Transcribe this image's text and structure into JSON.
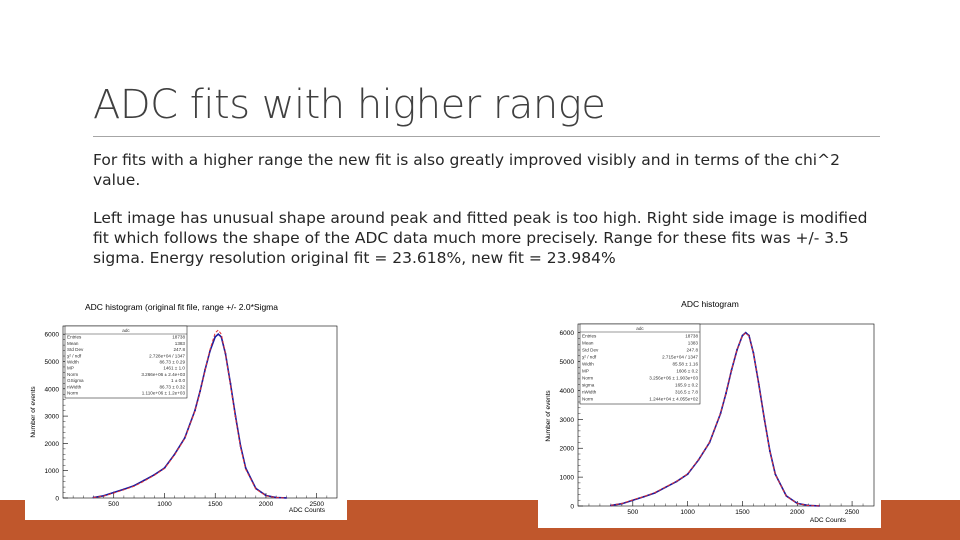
{
  "slide": {
    "title": "ADC fits with higher range",
    "paragraph1": "For fits with a higher range the new fit is also greatly improved visibly and in terms of the chi^2 value.",
    "paragraph2": "Left image has unusual shape around peak and fitted peak is too high. Right side image is modified fit which follows the shape of the ADC data much more precisely. Range for these fits was +/- 3.5 sigma. Energy resolution original fit = 23.618%, new fit = 23.984%",
    "accent_color": "#c0572c"
  },
  "chart_data": [
    {
      "type": "line",
      "title": "ADC histogram (original fit file, range +/- 2.0*Sigma",
      "xlabel": "ADC Counts",
      "ylabel": "Number of events",
      "xlim": [
        0,
        2700
      ],
      "ylim": [
        0,
        6300
      ],
      "x_ticks": [
        "500",
        "1000",
        "1500",
        "2000",
        "2500"
      ],
      "y_ticks": [
        "0",
        "1000",
        "2000",
        "3000",
        "4000",
        "5000",
        "6000"
      ],
      "stats_box_title": "adc",
      "stats_labels": [
        "Entries",
        "Mean",
        "Std Dev",
        "χ² / ndf",
        "Width",
        "MP",
        "Norm",
        "GSigma",
        "nWidth",
        "Norm"
      ],
      "stats_values": [
        "18738",
        "1383",
        "247.8",
        "2.728e+04 / 1347",
        "86.73 ± 0.29",
        "1461 ± 1.0",
        "3.266e+06 ± 2.4e+03",
        "1 ± 0.0",
        "86.73 ± 0.32",
        "1.110e+06 ± 1.2e+03"
      ],
      "series": [
        {
          "x": [
            300,
            400,
            500,
            600,
            700,
            800,
            900,
            1000,
            1100,
            1200,
            1300,
            1350,
            1400,
            1450,
            1500,
            1530,
            1560,
            1600,
            1650,
            1700,
            1750,
            1800,
            1900,
            2000,
            2100,
            2200
          ],
          "y": [
            20,
            80,
            200,
            320,
            450,
            650,
            850,
            1100,
            1600,
            2200,
            3200,
            3900,
            4700,
            5400,
            5900,
            6000,
            5900,
            5300,
            4200,
            3000,
            1900,
            1100,
            350,
            90,
            20,
            5
          ]
        },
        {
          "x": [
            300,
            400,
            500,
            600,
            700,
            800,
            900,
            1000,
            1100,
            1200,
            1300,
            1350,
            1400,
            1450,
            1500,
            1530,
            1560,
            1600,
            1650,
            1700,
            1750,
            1800,
            1900,
            2000,
            2100,
            2200
          ],
          "y": [
            20,
            70,
            180,
            300,
            430,
            620,
            830,
            1080,
            1580,
            2180,
            3180,
            3880,
            4680,
            5450,
            6050,
            6150,
            6000,
            5300,
            4150,
            2950,
            1850,
            1050,
            330,
            80,
            15,
            3
          ]
        }
      ],
      "series_colors": [
        "#1a1aa0",
        "#e03030"
      ]
    },
    {
      "type": "line",
      "title": "ADC histogram",
      "xlabel": "ADC Counts",
      "ylabel": "Number of events",
      "xlim": [
        0,
        2700
      ],
      "ylim": [
        0,
        6300
      ],
      "x_ticks": [
        "500",
        "1000",
        "1500",
        "2000",
        "2500"
      ],
      "y_ticks": [
        "0",
        "1000",
        "2000",
        "3000",
        "4000",
        "5000",
        "6000"
      ],
      "stats_box_title": "adc",
      "stats_labels": [
        "Entries",
        "Mean",
        "Std Dev",
        "χ² / ndf",
        "Width",
        "MP",
        "Norm",
        "sigma",
        "nWidth",
        "Norm"
      ],
      "stats_values": [
        "18738",
        "1383",
        "247.8",
        "2.715e+04 / 1347",
        "85.58 ± 1.16",
        "1606 ± 0.2",
        "3.256e+06 ± 1.903e+03",
        "165.9 ± 0.2",
        "316.5 ± 7.8",
        "1.244e+04 ± 4.055e+02"
      ],
      "series": [
        {
          "x": [
            300,
            400,
            500,
            600,
            700,
            800,
            900,
            1000,
            1100,
            1200,
            1300,
            1350,
            1400,
            1450,
            1500,
            1530,
            1560,
            1600,
            1650,
            1700,
            1750,
            1800,
            1900,
            2000,
            2100,
            2200
          ],
          "y": [
            20,
            80,
            200,
            320,
            450,
            650,
            850,
            1100,
            1600,
            2200,
            3200,
            3900,
            4700,
            5400,
            5900,
            6000,
            5900,
            5300,
            4200,
            3000,
            1900,
            1100,
            350,
            90,
            20,
            5
          ]
        },
        {
          "x": [
            300,
            400,
            500,
            600,
            700,
            800,
            900,
            1000,
            1100,
            1200,
            1300,
            1350,
            1400,
            1450,
            1500,
            1530,
            1560,
            1600,
            1650,
            1700,
            1750,
            1800,
            1900,
            2000,
            2100,
            2200
          ],
          "y": [
            20,
            85,
            210,
            330,
            460,
            660,
            860,
            1110,
            1610,
            2210,
            3210,
            3910,
            4710,
            5410,
            5890,
            5980,
            5880,
            5290,
            4190,
            2990,
            1890,
            1090,
            340,
            85,
            18,
            4
          ]
        }
      ],
      "series_colors": [
        "#1a1aa0",
        "#e03030"
      ]
    }
  ]
}
